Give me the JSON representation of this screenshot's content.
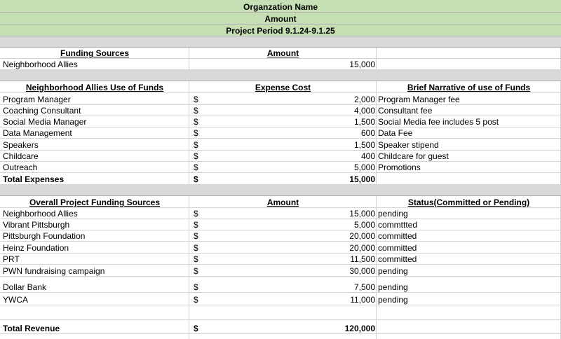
{
  "header": {
    "lines": [
      "Organzation Name",
      "Amount",
      "Project Period 9.1.24-9.1.25"
    ]
  },
  "funding_sources": {
    "headers": [
      "Funding Sources",
      "Amount"
    ],
    "rows": [
      [
        "Neighborhood Allies",
        "15,000"
      ]
    ]
  },
  "use_of_funds": {
    "headers": [
      "Neighborhood Allies Use of Funds",
      "Expense Cost",
      "Brief Narrative of use of Funds"
    ],
    "rows": [
      [
        "Program Manager",
        "$",
        "2,000",
        "Program Manager fee"
      ],
      [
        "Coaching Consultant",
        "$",
        "4,000",
        "Consultant fee"
      ],
      [
        "Social Media Manager",
        "$",
        "1,500",
        "Social Media fee includes 5 post"
      ],
      [
        "Data Management",
        "$",
        "600",
        "Data Fee"
      ],
      [
        "Speakers",
        "$",
        "1,500",
        "Speaker stipend"
      ],
      [
        "Childcare",
        "$",
        "400",
        "Childcare for guest"
      ],
      [
        "Outreach",
        "$",
        "5,000",
        "Promotions"
      ]
    ],
    "total": [
      "Total Expenses",
      "$",
      "15,000"
    ]
  },
  "project_funding": {
    "headers": [
      "Overall Project Funding Sources",
      "Amount",
      "Status(Committed or Pending)"
    ],
    "rows": [
      [
        "Neighborhood Allies",
        "$",
        "15,000",
        "pending"
      ],
      [
        "Vibrant Pittsburgh",
        "$",
        "5,000",
        "commttted"
      ],
      [
        "Pittsburgh Foundation",
        "$",
        "20,000",
        "committed"
      ],
      [
        "Heinz Foundation",
        "$",
        "20,000",
        "committed"
      ],
      [
        "PRT",
        "$",
        "11,500",
        "committed"
      ],
      [
        "PWN fundraising campaign",
        "$",
        "30,000",
        "pending"
      ],
      [
        "Dollar Bank",
        "$",
        "7,500",
        "pending"
      ],
      [
        "YWCA",
        "$",
        "11,000",
        "pending"
      ]
    ],
    "total": [
      "Total Revenue",
      "$",
      "120,000"
    ]
  }
}
